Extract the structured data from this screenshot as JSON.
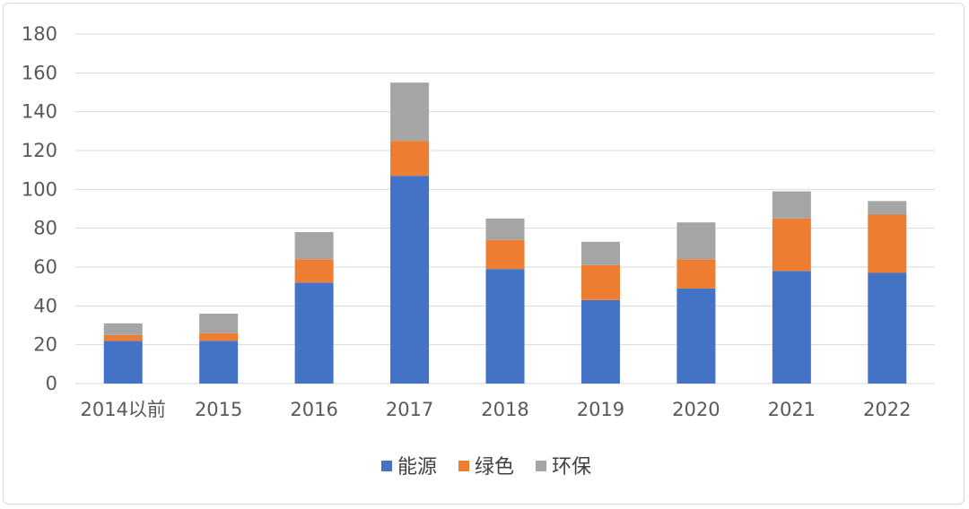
{
  "chart_data": {
    "type": "bar",
    "stacked": true,
    "categories": [
      "2014以前",
      "2015",
      "2016",
      "2017",
      "2018",
      "2019",
      "2020",
      "2021",
      "2022"
    ],
    "series": [
      {
        "name": "能源",
        "color": "#4472C4",
        "values": [
          22,
          22,
          52,
          107,
          59,
          43,
          49,
          58,
          57
        ]
      },
      {
        "name": "绿色",
        "color": "#ED7D31",
        "values": [
          3,
          4,
          12,
          18,
          15,
          18,
          15,
          27,
          30
        ]
      },
      {
        "name": "环保",
        "color": "#A5A5A5",
        "values": [
          6,
          10,
          14,
          30,
          11,
          12,
          19,
          14,
          7
        ]
      }
    ],
    "ylim": [
      0,
      180
    ],
    "yticks": [
      0,
      20,
      40,
      60,
      80,
      100,
      120,
      140,
      160,
      180
    ],
    "grid": true,
    "legend_position": "bottom"
  }
}
